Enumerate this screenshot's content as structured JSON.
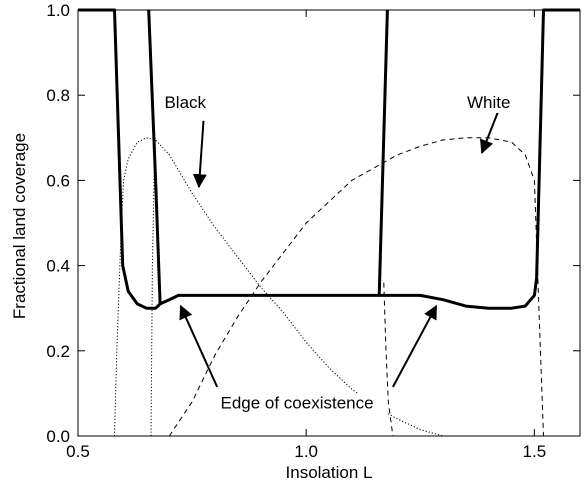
{
  "chart_data": {
    "type": "line",
    "title": "",
    "xlabel": "Insolation L",
    "ylabel": "Fractional land coverage",
    "xlim": [
      0.5,
      1.6
    ],
    "ylim": [
      0.0,
      1.0
    ],
    "xticks": [
      0.5,
      1.0,
      1.5
    ],
    "xtick_labels": [
      "0.5",
      "1.0",
      "1.5"
    ],
    "yticks": [
      0.0,
      0.2,
      0.4,
      0.6,
      0.8,
      1.0
    ],
    "ytick_labels": [
      "0.0",
      "0.2",
      "0.4",
      "0.6",
      "0.8",
      "1.0"
    ],
    "grid": false,
    "series": [
      {
        "name": "Black",
        "style": "dotted",
        "color": "#000000",
        "x": [
          0.58,
          0.585,
          0.595,
          0.6,
          0.61,
          0.63,
          0.65,
          0.67,
          0.7,
          0.75,
          0.8,
          0.85,
          0.9,
          0.95,
          1.0,
          1.05,
          1.1,
          1.15,
          1.2,
          1.25,
          1.3
        ],
        "y": [
          0.0,
          0.2,
          0.5,
          0.6,
          0.65,
          0.69,
          0.7,
          0.695,
          0.66,
          0.57,
          0.49,
          0.42,
          0.35,
          0.29,
          0.22,
          0.16,
          0.11,
          0.07,
          0.04,
          0.015,
          0.0
        ]
      },
      {
        "name": "",
        "style": "dotted",
        "color": "#000000",
        "x": [
          0.66,
          0.663,
          0.667,
          0.67
        ],
        "y": [
          0.0,
          0.4,
          0.62,
          0.7
        ]
      },
      {
        "name": "White",
        "style": "dashed",
        "color": "#000000",
        "x": [
          0.7,
          0.75,
          0.8,
          0.85,
          0.9,
          0.95,
          1.0,
          1.05,
          1.1,
          1.15,
          1.2,
          1.25,
          1.3,
          1.35,
          1.4,
          1.45,
          1.48,
          1.5,
          1.51,
          1.52
        ],
        "y": [
          0.0,
          0.08,
          0.19,
          0.28,
          0.36,
          0.43,
          0.5,
          0.55,
          0.6,
          0.63,
          0.66,
          0.68,
          0.695,
          0.7,
          0.7,
          0.69,
          0.66,
          0.6,
          0.3,
          0.0
        ]
      },
      {
        "name": "",
        "style": "dashed",
        "color": "#000000",
        "x": [
          1.17,
          1.175,
          1.18,
          1.19
        ],
        "y": [
          0.36,
          0.2,
          0.08,
          0.0
        ]
      },
      {
        "name": "",
        "style": "solid-thick",
        "color": "#000000",
        "x": [
          0.5,
          0.58,
          0.598,
          0.61,
          0.63,
          0.65,
          0.67,
          0.68,
          0.7,
          0.72,
          1.25,
          1.3,
          1.35,
          1.4,
          1.45,
          1.48,
          1.5,
          1.505,
          1.52,
          1.6
        ],
        "y": [
          1.0,
          1.0,
          0.4,
          0.34,
          0.31,
          0.3,
          0.3,
          0.31,
          0.32,
          0.33,
          0.33,
          0.32,
          0.305,
          0.3,
          0.3,
          0.305,
          0.33,
          0.37,
          1.0,
          1.0
        ]
      },
      {
        "name": "",
        "style": "solid-thick",
        "color": "#000000",
        "x": [
          0.655,
          0.67,
          0.68
        ],
        "y": [
          1.0,
          0.6,
          0.31
        ]
      },
      {
        "name": "",
        "style": "solid-thick",
        "color": "#000000",
        "x": [
          1.16,
          1.178
        ],
        "y": [
          0.33,
          1.0
        ]
      }
    ],
    "annotations": [
      {
        "text": "Black",
        "text_at": [
          0.735,
          0.77
        ],
        "arrow_from": [
          0.775,
          0.74
        ],
        "arrow_to": [
          0.765,
          0.585
        ]
      },
      {
        "text": "White",
        "text_at": [
          1.4,
          0.77
        ],
        "arrow_from": [
          1.42,
          0.76
        ],
        "arrow_to": [
          1.385,
          0.665
        ]
      },
      {
        "text": "Edge of coexistence",
        "text_at": [
          0.98,
          0.065
        ],
        "arrow_from": [
          0.805,
          0.115
        ],
        "arrow_to": [
          0.725,
          0.305
        ]
      },
      {
        "text": "",
        "text_at": null,
        "arrow_from": [
          1.19,
          0.115
        ],
        "arrow_to": [
          1.285,
          0.305
        ]
      }
    ]
  }
}
